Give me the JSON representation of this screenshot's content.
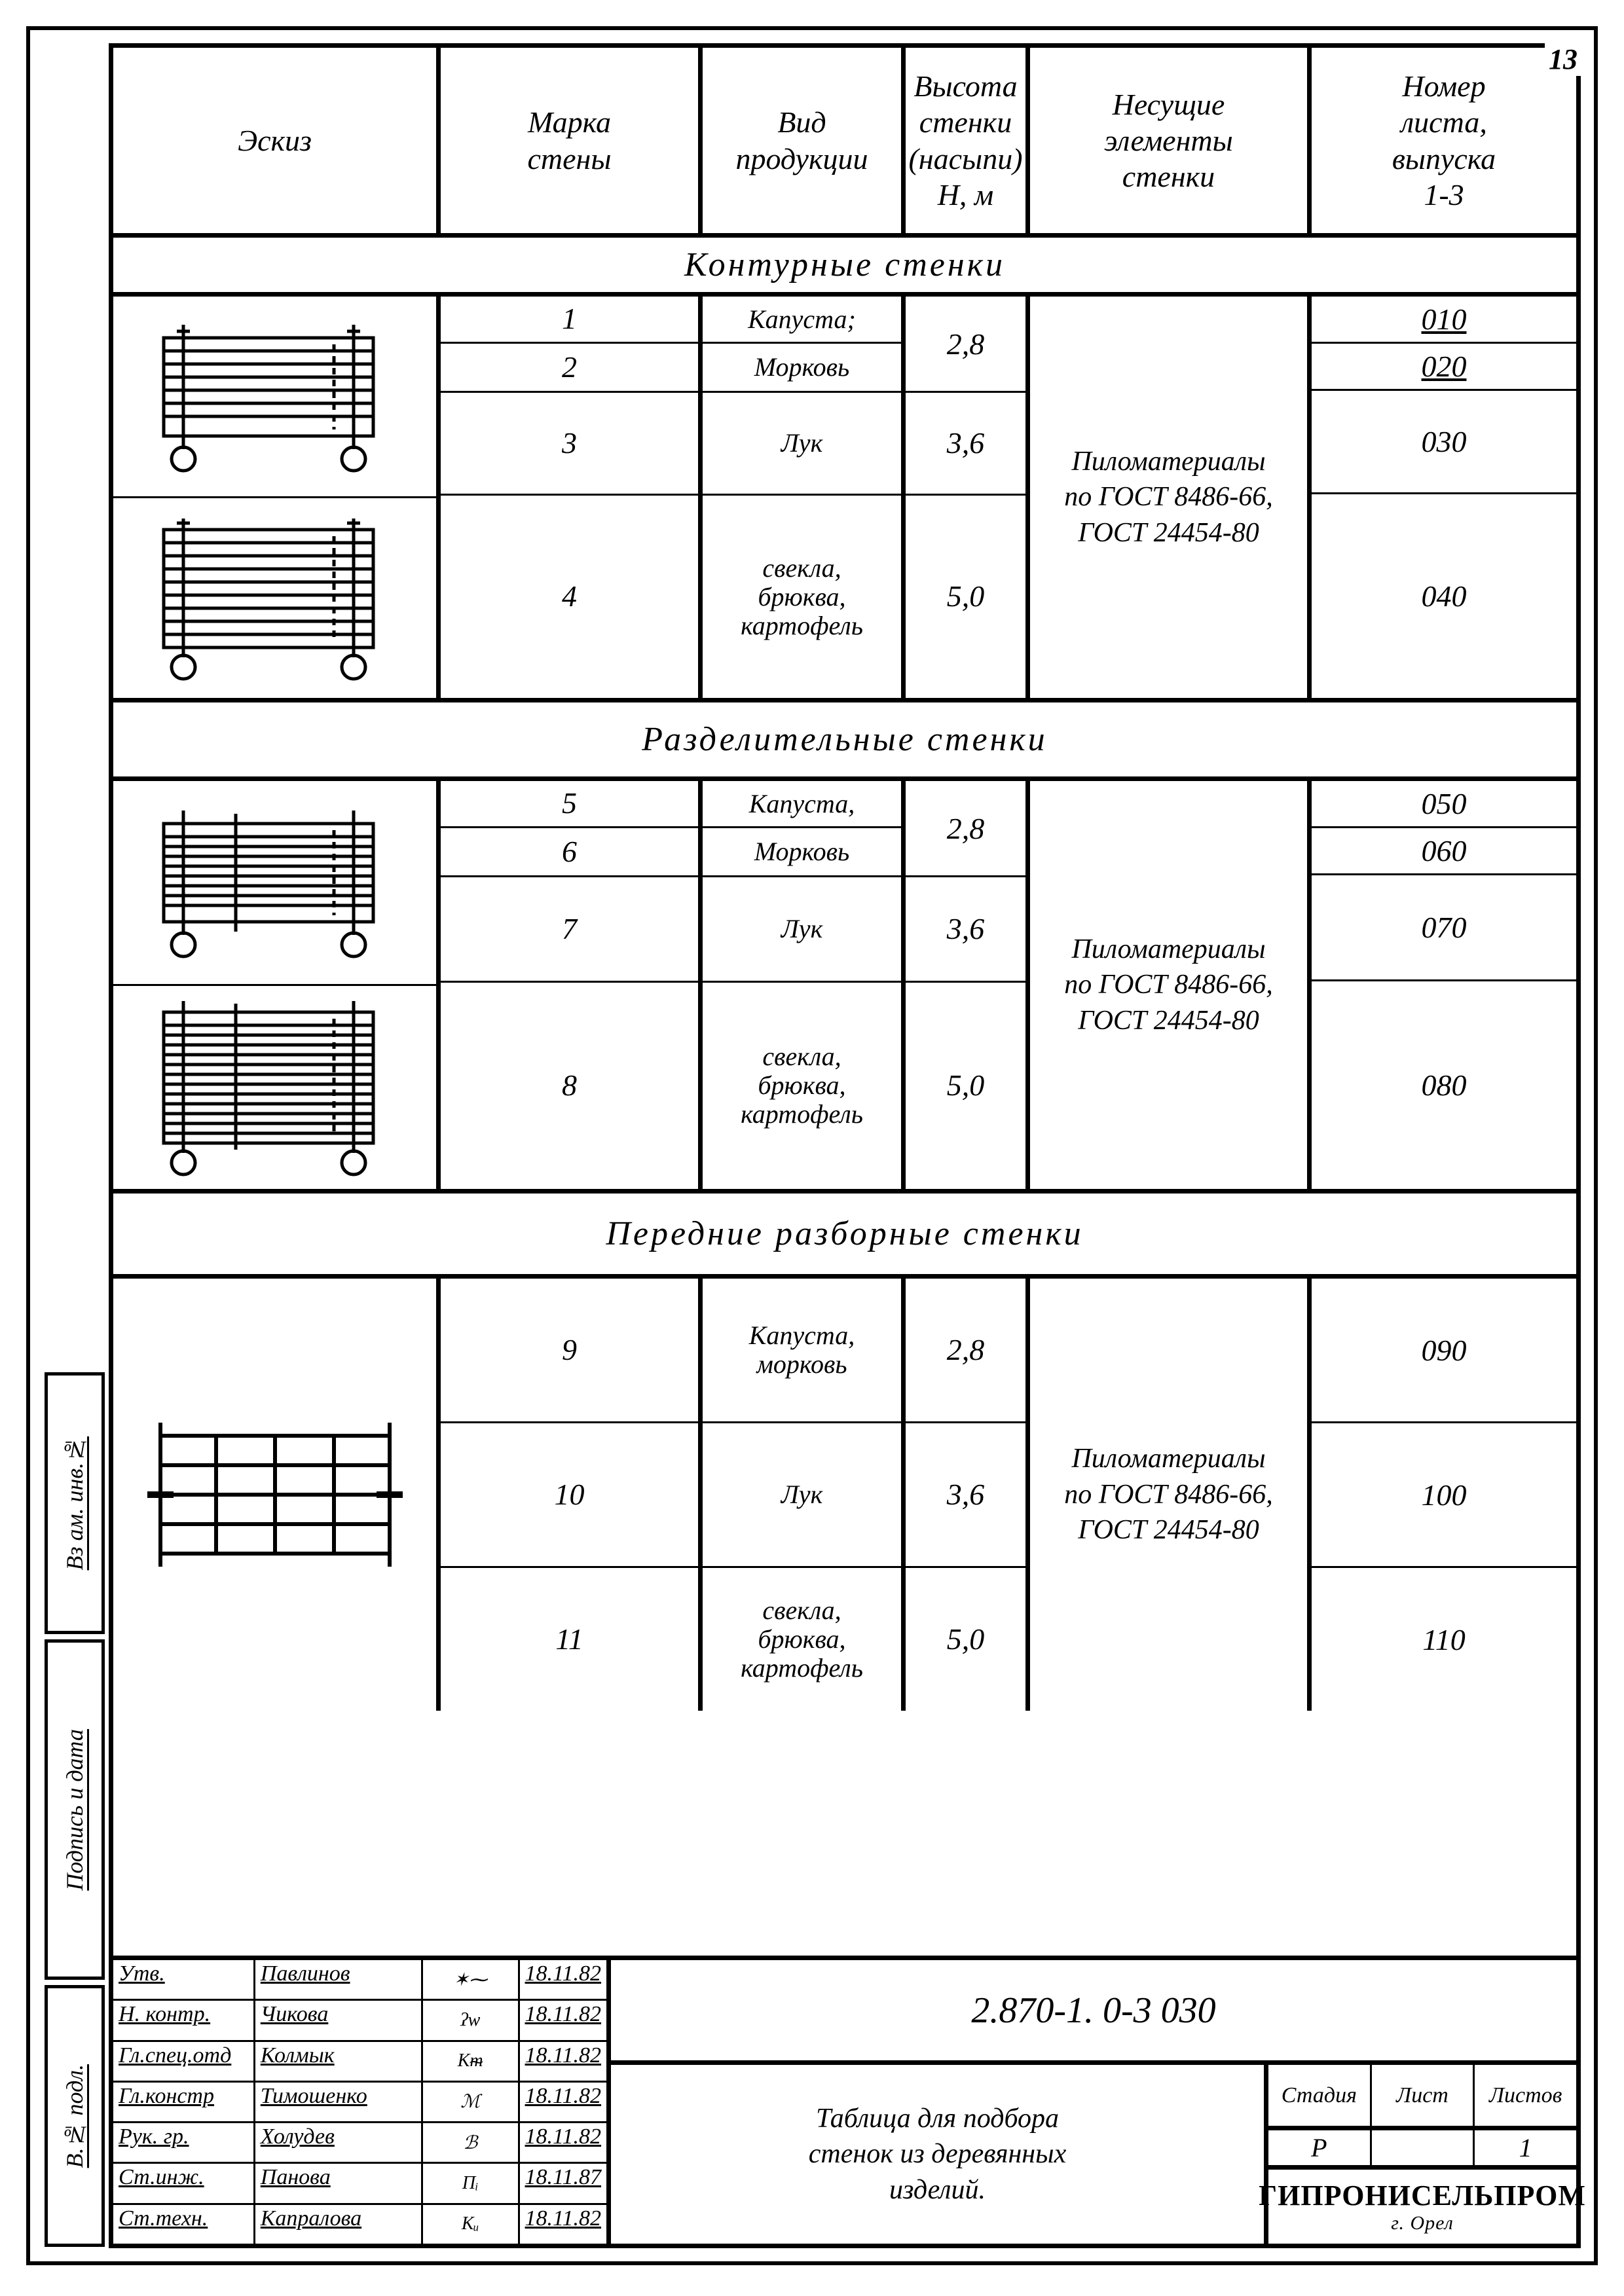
{
  "page_number": "13",
  "header": {
    "eskiz": "Эскиз",
    "marka": "Марка\nстены",
    "vid": "Вид\nпродукции",
    "vysota": "Высота\nстенки\n(насыпи)\nН, м",
    "nesush": "Несущие\nэлементы\nстенки",
    "nomer": "Номер\nлиста,\nвыпуска\n1-3"
  },
  "sections": [
    {
      "title": "Контурные   стенки"
    },
    {
      "title": "Разделительные   стенки"
    },
    {
      "title": "Передние   разборные   стенки"
    }
  ],
  "materials": "Пиломатериалы\nпо ГОСТ 8486-66,\nГОСТ 24454-80",
  "rows": {
    "r1": {
      "marka": "1",
      "vid": "Капуста;",
      "nom": "010"
    },
    "r2": {
      "marka": "2",
      "vid": "Морковь",
      "nom": "020"
    },
    "r3": {
      "marka": "3",
      "vid": "Лук",
      "nom": "030",
      "h": "3,6"
    },
    "r4": {
      "marka": "4",
      "vid": "свекла,\nбрюква,\nкартофель",
      "nom": "040",
      "h": "5,0"
    },
    "r5": {
      "marka": "5",
      "vid": "Капуста,",
      "nom": "050"
    },
    "r6": {
      "marka": "6",
      "vid": "Морковь",
      "nom": "060"
    },
    "r7": {
      "marka": "7",
      "vid": "Лук",
      "nom": "070",
      "h": "3,6"
    },
    "r8": {
      "marka": "8",
      "vid": "свекла,\nбрюква,\nкартофель",
      "nom": "080",
      "h": "5,0"
    },
    "r9": {
      "marka": "9",
      "vid": "Капуста,\nморковь",
      "nom": "090",
      "h": "2,8"
    },
    "r10": {
      "marka": "10",
      "vid": "Лук",
      "nom": "100",
      "h": "3,6"
    },
    "r11": {
      "marka": "11",
      "vid": "свекла,\nбрюква,\nкартофель",
      "nom": "110",
      "h": "5,0"
    }
  },
  "pair_heights": {
    "p12": "2,8",
    "p56": "2,8"
  },
  "stamp": {
    "code": "2.870-1. 0-3  030",
    "title": "Таблица для подбора\nстенок из деревянных\nизделий.",
    "stage_lbl": "Стадия",
    "sheet_lbl": "Лист",
    "sheets_lbl": "Листов",
    "stage": "Р",
    "sheet": "",
    "sheets": "1",
    "org": "ГИПРОНИСЕЛЬПРОМ",
    "org_city": "г. Орел",
    "signers": [
      {
        "role": "Утв.",
        "name": "Павлинов",
        "date": "18.11.82"
      },
      {
        "role": "Н. контр.",
        "name": "Чикова",
        "date": "18.11.82"
      },
      {
        "role": "Гл.спец.отд",
        "name": "Колмык",
        "date": "18.11.82"
      },
      {
        "role": "Гл.констр",
        "name": "Тимошенко",
        "date": "18.11.82"
      },
      {
        "role": "Рук. гр.",
        "name": "Холудев",
        "date": "18.11.82"
      },
      {
        "role": "Ст.инж.",
        "name": "Панова",
        "date": "18.11.87"
      },
      {
        "role": "Ст.техн.",
        "name": "Капралова",
        "date": "18.11.82"
      }
    ]
  },
  "binding": {
    "a": "В.№ подл.",
    "b": "Подпись и дата",
    "c": "Вз ам. инв.№"
  },
  "style": {
    "border_w_heavy": 7,
    "border_w_light": 3,
    "font_main": 46,
    "font_header": 46,
    "font_section": 52
  }
}
